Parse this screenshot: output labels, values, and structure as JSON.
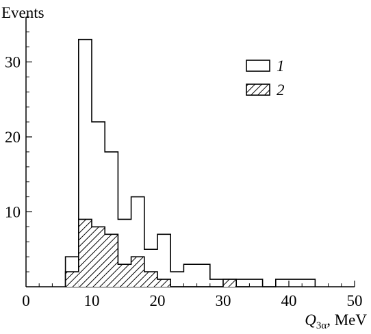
{
  "chart_data": {
    "type": "histogram",
    "ylabel": "Events",
    "xlabel_var": "Q",
    "xlabel_sub": "3α",
    "xlabel_unit": ", MeV",
    "xlim": [
      0,
      50
    ],
    "ylim": [
      0,
      36
    ],
    "bin_width": 2,
    "x_ticks": [
      0,
      10,
      20,
      30,
      40,
      50
    ],
    "x_tick_labels": [
      "0",
      "10",
      "20",
      "30",
      "40",
      "50"
    ],
    "y_ticks": [
      10,
      20,
      30
    ],
    "y_tick_labels": [
      "10",
      "20",
      "30"
    ],
    "legend_position": "top-right",
    "series": [
      {
        "name": "1",
        "style": "open outline",
        "bin_starts": [
          6,
          8,
          10,
          12,
          14,
          16,
          18,
          20,
          22,
          24,
          26,
          28,
          30,
          32,
          34,
          36,
          38,
          40,
          42
        ],
        "values": [
          4,
          33,
          22,
          18,
          9,
          12,
          5,
          7,
          2,
          3,
          3,
          1,
          1,
          1,
          1,
          0,
          1,
          1,
          1
        ]
      },
      {
        "name": "2",
        "style": "hatched",
        "bin_starts": [
          6,
          8,
          10,
          12,
          14,
          16,
          18,
          20,
          22,
          24,
          26,
          28,
          30,
          32
        ],
        "values": [
          2,
          9,
          8,
          7,
          3,
          4,
          2,
          1,
          0,
          0,
          0,
          0,
          1,
          0
        ]
      }
    ]
  }
}
